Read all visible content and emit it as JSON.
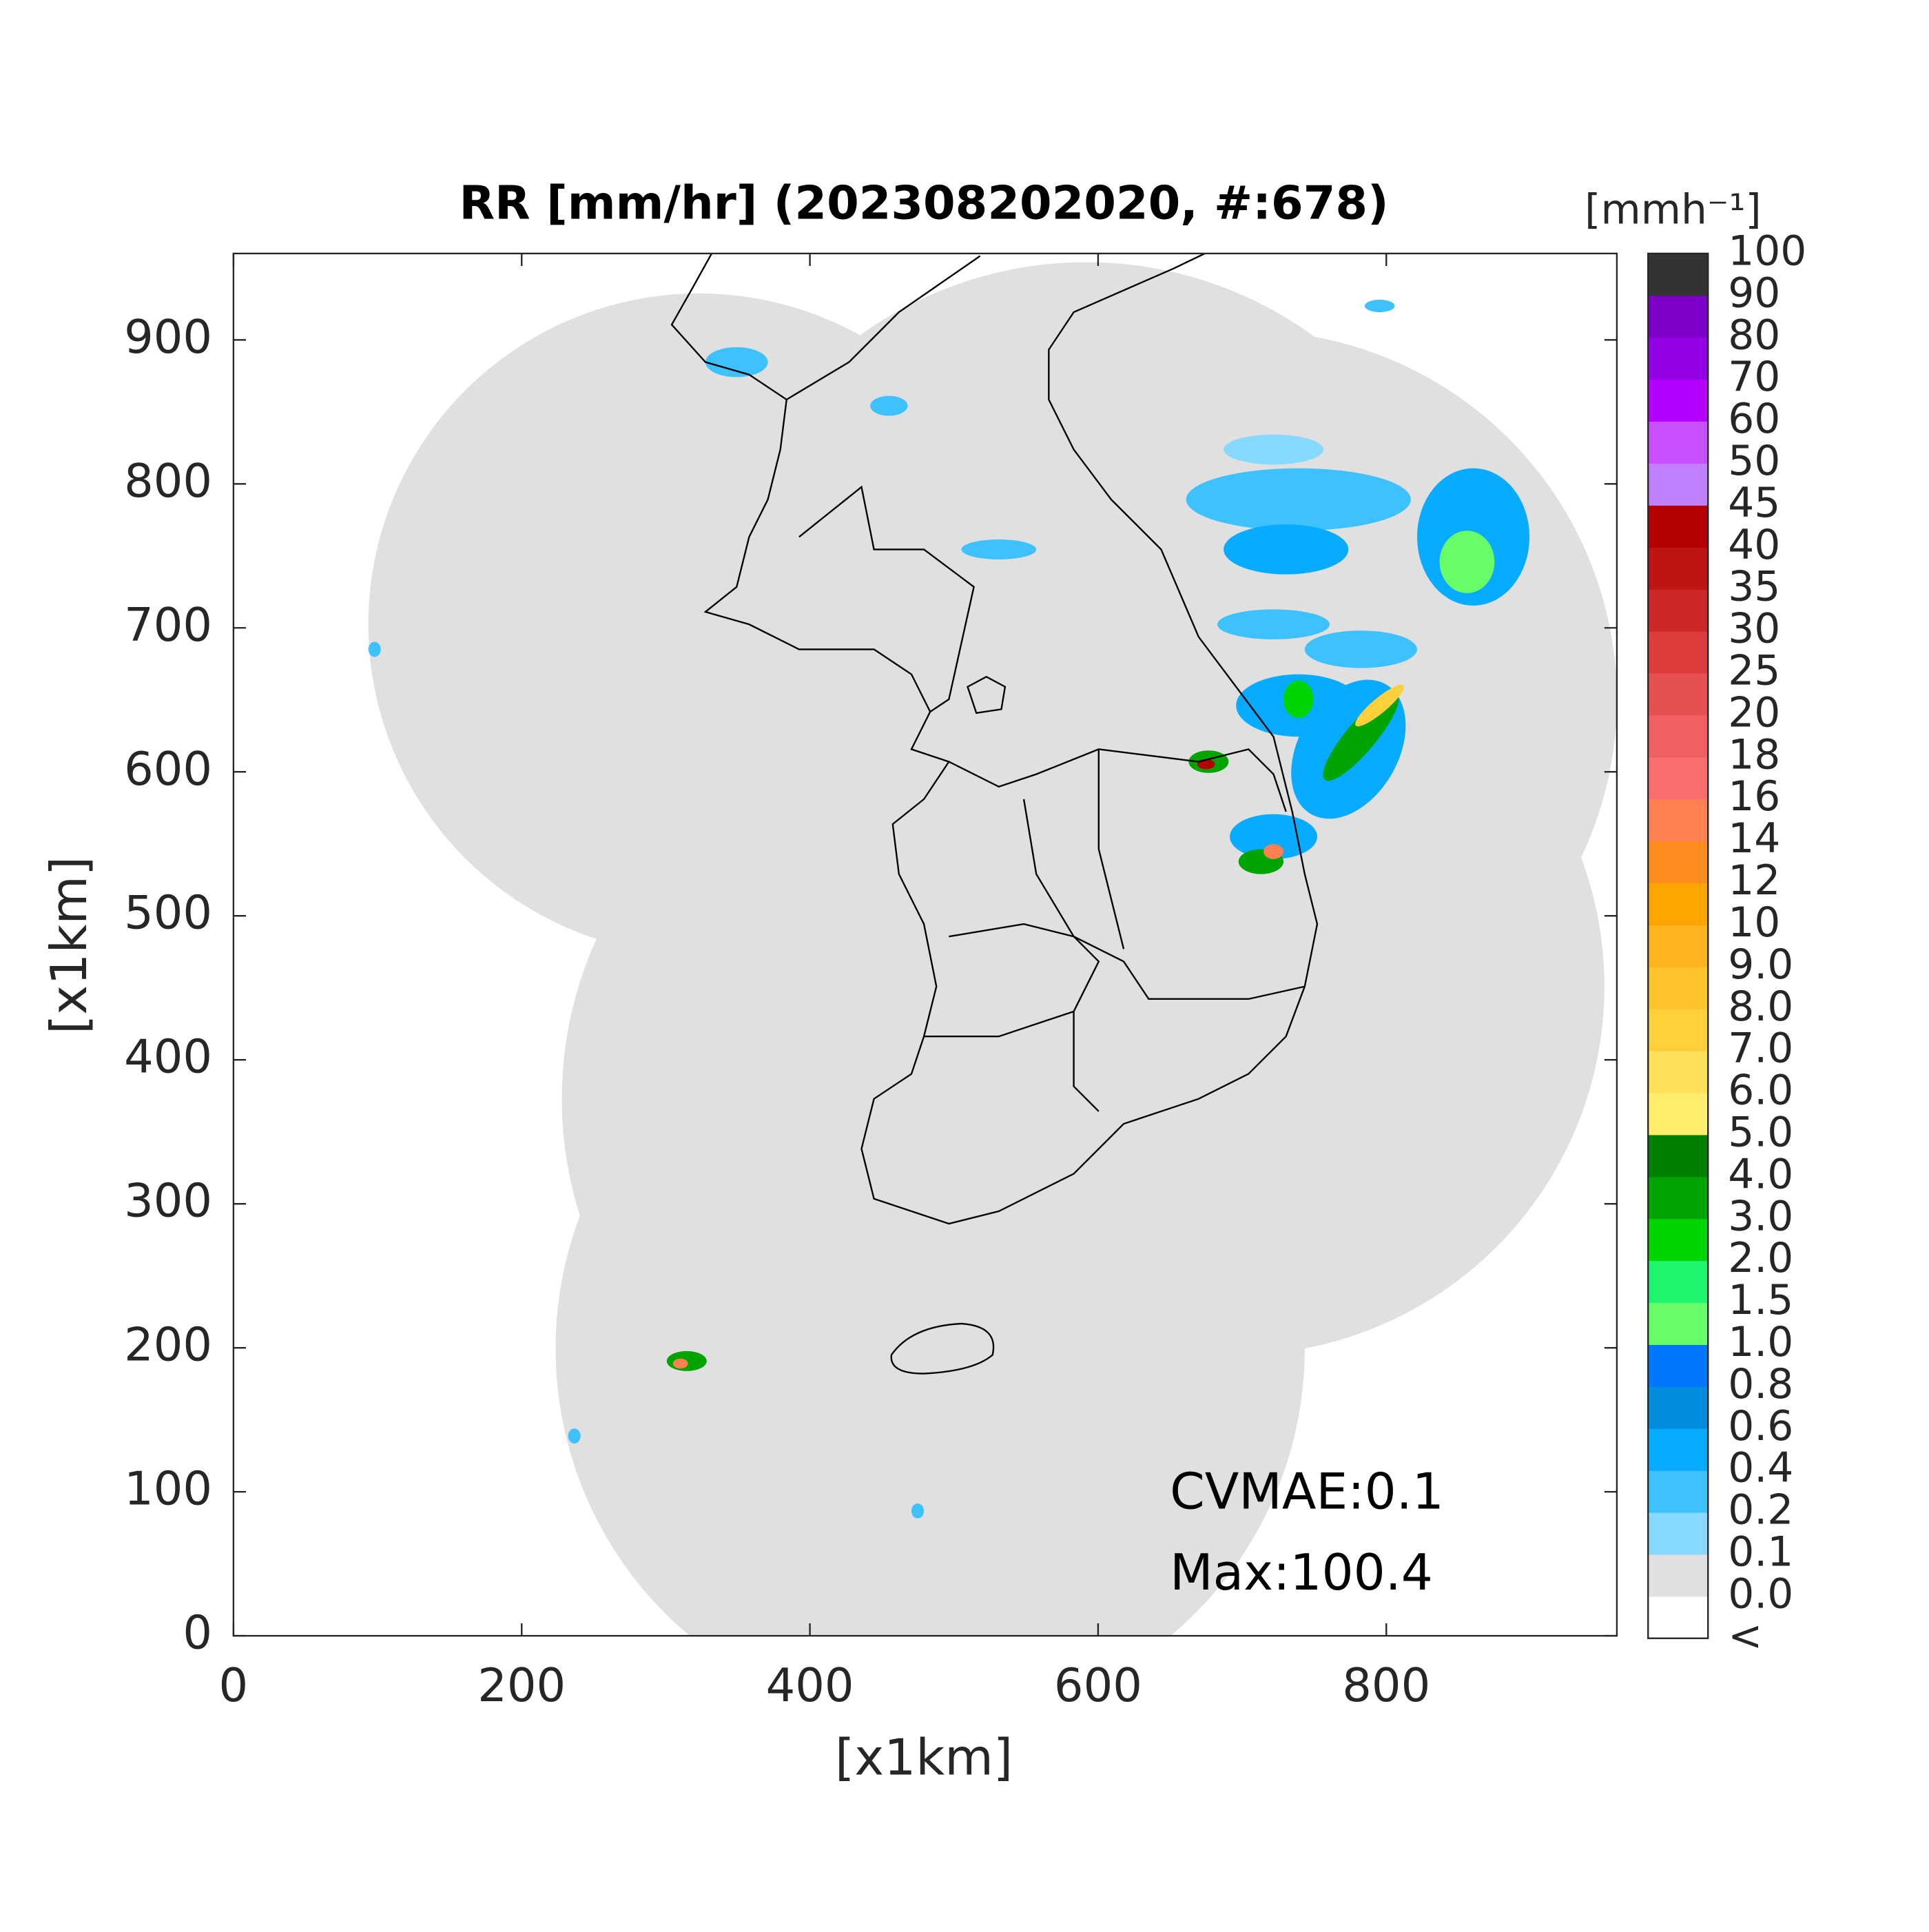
{
  "chart_data": {
    "type": "map",
    "title": "RR [mm/hr] (202308202020, #:678)",
    "xlabel": "[x1km]",
    "ylabel": "[x1km]",
    "xlim": [
      0,
      960
    ],
    "ylim": [
      0,
      960
    ],
    "xticks": [
      0,
      200,
      400,
      600,
      800
    ],
    "yticks": [
      0,
      100,
      200,
      300,
      400,
      500,
      600,
      700,
      800,
      900
    ],
    "annotations": [
      "CVMAE:0.1",
      "Max:100.4"
    ],
    "colorbar": {
      "title": "[mmh⁻¹]",
      "labels": [
        "<",
        "0.0",
        "0.1",
        "0.2",
        "0.4",
        "0.6",
        "0.8",
        "1.0",
        "1.5",
        "2.0",
        "3.0",
        "4.0",
        "5.0",
        "6.0",
        "7.0",
        "8.0",
        "9.0",
        "10",
        "12",
        "14",
        "16",
        "18",
        "20",
        "25",
        "30",
        "35",
        "40",
        "45",
        "50",
        "60",
        "70",
        "80",
        "90",
        "100"
      ],
      "colors": [
        "#ffffff",
        "#e0e0e0",
        "#87d9ff",
        "#3ec1ff",
        "#07abff",
        "#008dde",
        "#0077ff",
        "#69fc69",
        "#1ef46d",
        "#00d500",
        "#00a400",
        "#008000",
        "#ffee6e",
        "#ffe05a",
        "#ffd03c",
        "#ffc42c",
        "#ffb41e",
        "#ffa500",
        "#ff8c1e",
        "#ff8050",
        "#fa6e6e",
        "#f06060",
        "#e65050",
        "#dc3c3c",
        "#cc2828",
        "#be1414",
        "#b40000",
        "#c080ff",
        "#c850ff",
        "#b400ff",
        "#9300e4",
        "#7d00c8",
        "#333333"
      ]
    }
  }
}
